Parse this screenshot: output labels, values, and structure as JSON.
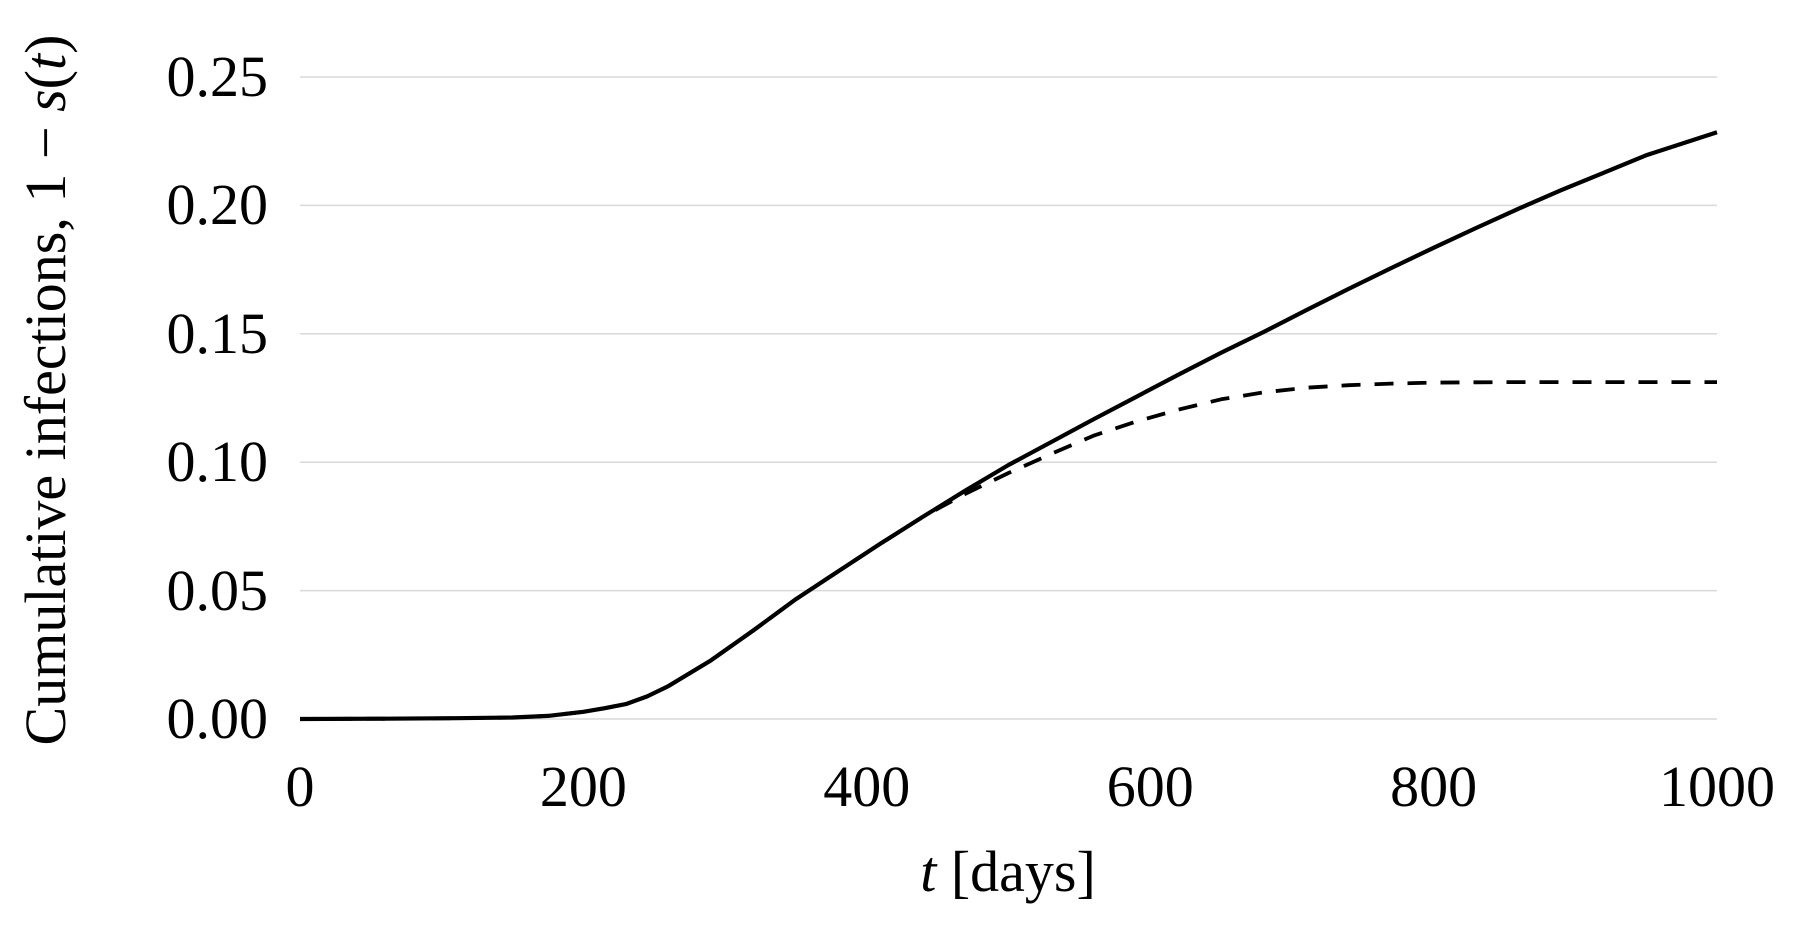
{
  "chart_data": {
    "type": "line",
    "title": "",
    "xlabel_parts": [
      {
        "text": "t",
        "italic": true
      },
      {
        "text": " [days]",
        "italic": false
      }
    ],
    "ylabel_parts": [
      {
        "text": "Cumulative infections, 1 − ",
        "italic": false
      },
      {
        "text": "s",
        "italic": true
      },
      {
        "text": "(",
        "italic": false
      },
      {
        "text": "t",
        "italic": true
      },
      {
        "text": ")",
        "italic": false
      }
    ],
    "xlim": [
      0,
      1000
    ],
    "ylim": [
      0,
      0.25
    ],
    "grid": "horizontal",
    "legend": "none",
    "gridline_color": "#d9d9d9",
    "line_color": "#000000",
    "background_color": "#ffffff",
    "xticks": [
      {
        "label": "0",
        "value": 0
      },
      {
        "label": "200",
        "value": 200
      },
      {
        "label": "400",
        "value": 400
      },
      {
        "label": "600",
        "value": 600
      },
      {
        "label": "800",
        "value": 800
      },
      {
        "label": "1000",
        "value": 1000
      }
    ],
    "yticks": [
      {
        "label": "0.00",
        "value": 0.0
      },
      {
        "label": "0.05",
        "value": 0.05
      },
      {
        "label": "0.10",
        "value": 0.1
      },
      {
        "label": "0.15",
        "value": 0.15
      },
      {
        "label": "0.20",
        "value": 0.2
      },
      {
        "label": "0.25",
        "value": 0.25
      }
    ],
    "x": [
      0,
      60,
      110,
      150,
      175,
      200,
      215,
      230,
      245,
      260,
      290,
      320,
      350,
      380,
      410,
      440,
      470,
      500,
      530,
      560,
      590,
      620,
      650,
      680,
      710,
      740,
      770,
      800,
      830,
      860,
      890,
      920,
      950,
      1000
    ],
    "series": [
      {
        "name": "solid",
        "style": "solid",
        "y": [
          0,
          0.0001,
          0.0003,
          0.0006,
          0.0012,
          0.0028,
          0.0042,
          0.0058,
          0.0088,
          0.0128,
          0.0228,
          0.0345,
          0.0467,
          0.0576,
          0.0684,
          0.0789,
          0.0891,
          0.0989,
          0.1078,
          0.1167,
          0.1254,
          0.1341,
          0.1426,
          0.1507,
          0.1592,
          0.1675,
          0.1756,
          0.1835,
          0.1912,
          0.1987,
          0.2059,
          0.2127,
          0.2195,
          0.2285
        ]
      },
      {
        "name": "dashed",
        "style": "dashed",
        "y": [
          0,
          0.0001,
          0.0003,
          0.0006,
          0.0012,
          0.0028,
          0.0042,
          0.0058,
          0.0088,
          0.0128,
          0.0228,
          0.0345,
          0.0467,
          0.0576,
          0.0684,
          0.0789,
          0.0878,
          0.0958,
          0.1032,
          0.1103,
          0.1158,
          0.1205,
          0.1245,
          0.1272,
          0.129,
          0.13,
          0.1306,
          0.131,
          0.1311,
          0.1312,
          0.1312,
          0.1312,
          0.1312,
          0.1312
        ]
      }
    ]
  }
}
